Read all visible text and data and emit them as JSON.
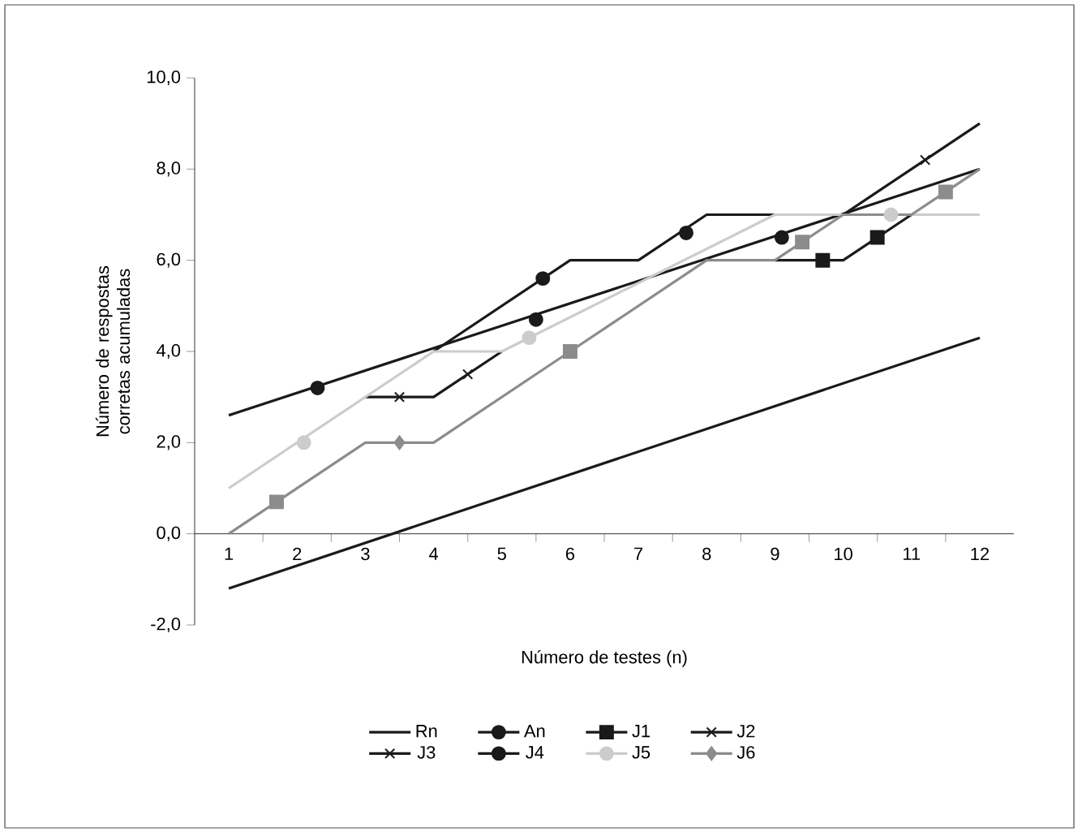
{
  "chart_data": {
    "type": "line",
    "xlabel": "Número de testes (n)",
    "ylabel": "Número de respostas corretas acumuladas",
    "xlim": [
      0.5,
      12.5
    ],
    "xticks": [
      1,
      {
        "value": 1.5,
        "label": null
      },
      2,
      {
        "value": 2.5,
        "label": null
      },
      3,
      {
        "value": 3.5,
        "label": null
      },
      4,
      {
        "value": 4.5,
        "label": null
      },
      5,
      {
        "value": 5.5,
        "label": null
      },
      6,
      {
        "value": 6.5,
        "label": null
      },
      7,
      {
        "value": 7.5,
        "label": null
      },
      8,
      {
        "value": 8.5,
        "label": null
      },
      9,
      {
        "value": 9.5,
        "label": null
      },
      10,
      {
        "value": 10.5,
        "label": null
      },
      11,
      {
        "value": 11.5,
        "label": null
      },
      12
    ],
    "ylim": [
      -2,
      10
    ],
    "yticks": [
      {
        "value": -2,
        "label": "-2,0"
      },
      {
        "value": 0,
        "label": "0,0"
      },
      {
        "value": 2,
        "label": "2,0"
      },
      {
        "value": 4,
        "label": "4,0"
      },
      {
        "value": 6,
        "label": "6,0"
      },
      {
        "value": 8,
        "label": "8,0"
      },
      {
        "value": 10,
        "label": "10,0"
      }
    ],
    "grid": false,
    "legend": "bottom",
    "series": [
      {
        "name": "Rn",
        "color": "#1a1a1a",
        "x": [
          1,
          12
        ],
        "values": [
          -1.2,
          4.3
        ]
      },
      {
        "color": "#1a1a1a",
        "x": [
          1,
          12
        ],
        "values": [
          2.6,
          8.0
        ]
      },
      {
        "color": "#1a1a1a",
        "x": [
          9,
          10,
          11
        ],
        "values": [
          6,
          6,
          7
        ]
      },
      {
        "color": "#1a1a1a",
        "x": [
          3,
          4,
          5
        ],
        "values": [
          3,
          3,
          4
        ]
      },
      {
        "color": "#1a1a1a",
        "x": [
          10,
          12
        ],
        "values": [
          7,
          9
        ]
      },
      {
        "color": "#1a1a1a",
        "x": [
          4,
          6,
          7,
          8,
          9
        ],
        "values": [
          4,
          6,
          6,
          7,
          7
        ]
      },
      {
        "color": "#cccccc",
        "x": [
          1,
          4,
          5,
          9,
          12
        ],
        "values": [
          1,
          4,
          4,
          7,
          7
        ]
      },
      {
        "color": "#8c8c8c",
        "x": [
          1,
          3,
          4,
          6,
          8,
          9,
          10,
          11,
          12
        ],
        "values": [
          0,
          2,
          2,
          4,
          6,
          6,
          7,
          7,
          8
        ]
      },
      {
        "name": "An",
        "type": "scatter",
        "color": "#1a1a1a",
        "marker": "circle",
        "x": [
          2.3,
          5.5,
          9.1
        ],
        "values": [
          3.2,
          4.7,
          6.5
        ]
      },
      {
        "name": "J1",
        "type": "scatter",
        "color": "#1a1a1a",
        "marker": "square",
        "x": [
          9.7,
          10.5
        ],
        "values": [
          6.0,
          6.5
        ]
      },
      {
        "name": "J2",
        "type": "scatter",
        "color": "#1a1a1a",
        "marker": "cross",
        "x": [
          3.5,
          4.5
        ],
        "values": [
          3.0,
          3.5
        ]
      },
      {
        "name": "J3",
        "type": "scatter",
        "color": "#1a1a1a",
        "marker": "cross",
        "x": [
          11.2
        ],
        "values": [
          8.2
        ]
      },
      {
        "name": "J4",
        "type": "scatter",
        "color": "#1a1a1a",
        "marker": "circle",
        "x": [
          5.6,
          7.7
        ],
        "values": [
          5.6,
          6.6
        ]
      },
      {
        "name": "J5",
        "type": "scatter",
        "color": "#cccccc",
        "marker": "circle",
        "x": [
          2.1,
          5.4,
          10.7
        ],
        "values": [
          2.0,
          4.3,
          7.0
        ]
      },
      {
        "name": "J6",
        "type": "scatter",
        "color": "#8c8c8c",
        "marker": "diamond",
        "x": [
          3.5
        ],
        "values": [
          2.0
        ]
      },
      {
        "type": "scatter",
        "color": "#8c8c8c",
        "marker": "square",
        "x": [
          1.7,
          6.0,
          9.4,
          11.5
        ],
        "values": [
          0.7,
          4.0,
          6.4,
          7.5
        ]
      }
    ]
  }
}
